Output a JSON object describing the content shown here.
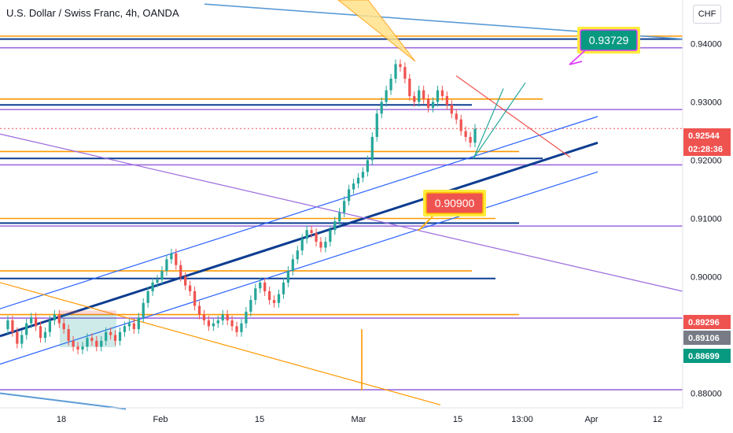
{
  "symbol_title": "U.S. Dollar / Swiss Franc, 4h, OANDA",
  "currency_button": "CHF",
  "colors": {
    "up": "#26a69a",
    "down": "#ef5350",
    "orange": "#ff9800",
    "purple": "#9c6ade",
    "navy": "#0d3d91",
    "blue": "#2962ff",
    "teal_label": "#089981"
  },
  "chart_data": {
    "type": "candlestick",
    "symbol": "USDCHF",
    "timeframe": "4h",
    "source": "OANDA",
    "ylim": [
      0.8775,
      0.9475
    ],
    "y_ticks": [
      "0.94000",
      "0.93000",
      "0.92000",
      "0.91000",
      "0.90000",
      "0.88000"
    ],
    "x_ticks": [
      "18",
      "Feb",
      "15",
      "Mar",
      "15",
      "13:00",
      "Apr",
      "12"
    ],
    "price_labels": [
      {
        "text": "0.92544",
        "value": 0.92544,
        "color": "#ef5350"
      },
      {
        "text": "02:28:36",
        "value": 0.92544,
        "color": "#ef5350"
      },
      {
        "text": "0.89296",
        "value": 0.89296,
        "color": "#ef5350"
      },
      {
        "text": "0.89106",
        "value": 0.89106,
        "color": "#787b86"
      },
      {
        "text": "0.88699",
        "value": 0.88699,
        "color": "#089981"
      }
    ],
    "annotations": [
      {
        "text": "0.90900",
        "value": 0.909,
        "type": "callout",
        "bg": "#ef5350"
      },
      {
        "text": "0.93729",
        "value": 0.93729,
        "type": "callout",
        "bg": "#089981"
      }
    ],
    "price_path": [
      0.891,
      0.8925,
      0.8905,
      0.8885,
      0.89,
      0.892,
      0.893,
      0.8915,
      0.8895,
      0.8905,
      0.8925,
      0.8935,
      0.892,
      0.891,
      0.889,
      0.888,
      0.8875,
      0.888,
      0.8895,
      0.889,
      0.888,
      0.889,
      0.8905,
      0.89,
      0.889,
      0.8905,
      0.8915,
      0.892,
      0.891,
      0.893,
      0.8955,
      0.8975,
      0.899,
      0.8995,
      0.901,
      0.903,
      0.904,
      0.902,
      0.9,
      0.8985,
      0.8975,
      0.895,
      0.8935,
      0.8925,
      0.8915,
      0.892,
      0.8925,
      0.8935,
      0.8925,
      0.8915,
      0.8905,
      0.892,
      0.894,
      0.896,
      0.898,
      0.899,
      0.8975,
      0.896,
      0.8955,
      0.897,
      0.899,
      0.901,
      0.903,
      0.9045,
      0.9065,
      0.908,
      0.9075,
      0.906,
      0.905,
      0.906,
      0.908,
      0.9095,
      0.911,
      0.913,
      0.915,
      0.916,
      0.917,
      0.918,
      0.92,
      0.924,
      0.928,
      0.93,
      0.932,
      0.934,
      0.9365,
      0.936,
      0.934,
      0.931,
      0.93,
      0.932,
      0.9305,
      0.929,
      0.93,
      0.932,
      0.931,
      0.9295,
      0.928,
      0.927,
      0.925,
      0.924,
      0.923,
      0.9254
    ],
    "horizontal_levels": [
      {
        "value": 0.9413,
        "color": "#ff9800"
      },
      {
        "value": 0.9408,
        "color": "#0d3d91"
      },
      {
        "value": 0.9393,
        "color": "#9c6ade"
      },
      {
        "value": 0.9305,
        "color": "#ff9800"
      },
      {
        "value": 0.9295,
        "color": "#0d3d91"
      },
      {
        "value": 0.9287,
        "color": "#9c6ade"
      },
      {
        "value": 0.9215,
        "color": "#ff9800"
      },
      {
        "value": 0.9203,
        "color": "#0d3d91"
      },
      {
        "value": 0.9192,
        "color": "#9c6ade"
      },
      {
        "value": 0.91,
        "color": "#ff9800"
      },
      {
        "value": 0.9092,
        "color": "#0d3d91"
      },
      {
        "value": 0.9087,
        "color": "#9c6ade"
      },
      {
        "value": 0.901,
        "color": "#ff9800"
      },
      {
        "value": 0.8997,
        "color": "#0d3d91"
      },
      {
        "value": 0.8935,
        "color": "#ff9800"
      },
      {
        "value": 0.8929,
        "color": "#9c6ade"
      },
      {
        "value": 0.8806,
        "color": "#9c6ade"
      }
    ],
    "trend_channels": [
      {
        "from": [
          0.8898,
          0
        ],
        "to": [
          0.923,
          1
        ],
        "color": "#0d3d91",
        "style": "thick"
      },
      {
        "from": [
          0.8945,
          0
        ],
        "to": [
          0.9275,
          1
        ],
        "color": "#2962ff",
        "style": "thin"
      },
      {
        "from": [
          0.885,
          0
        ],
        "to": [
          0.918,
          1
        ],
        "color": "#2962ff",
        "style": "thin"
      }
    ],
    "grid": false,
    "legend": "none"
  }
}
